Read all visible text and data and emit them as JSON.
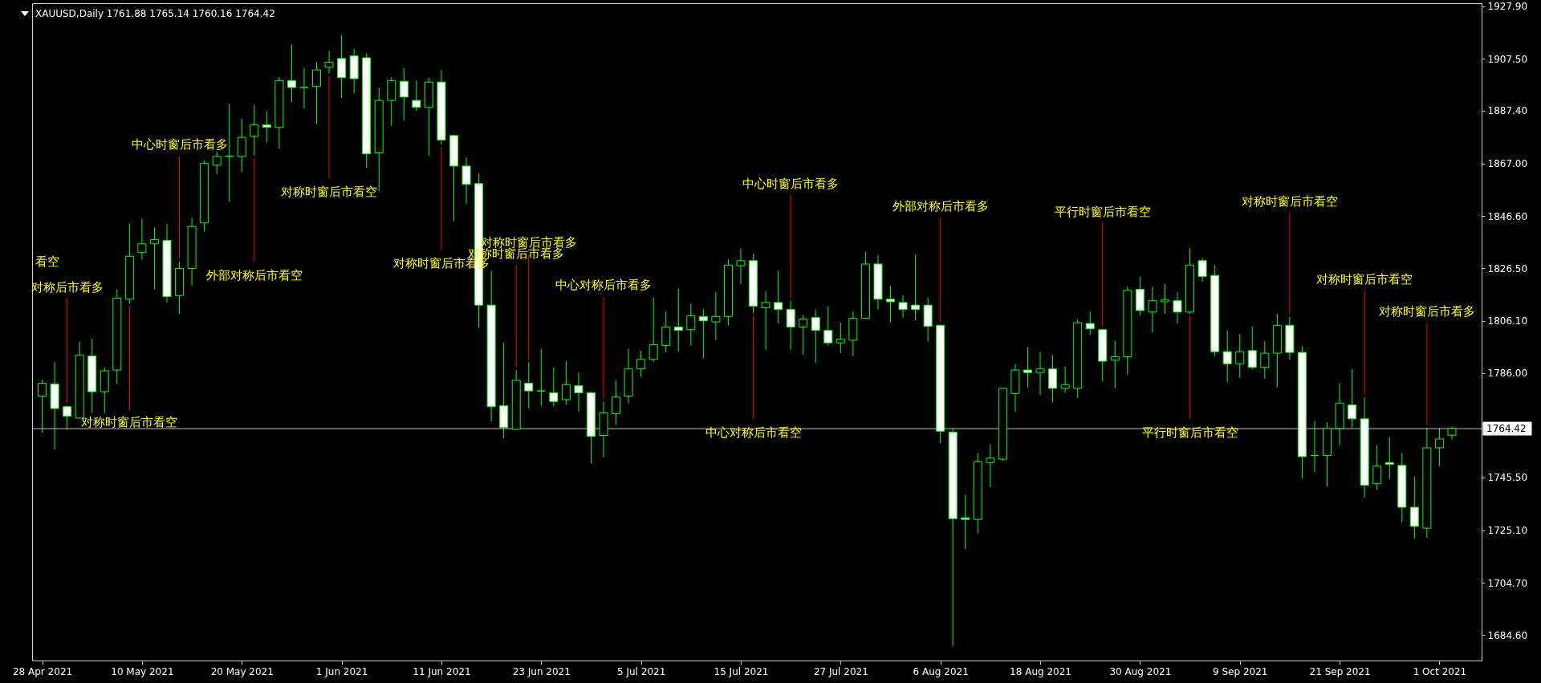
{
  "chart_data": {
    "type": "candlestick",
    "title": "XAUUSD,Daily  1761.88 1765.14 1760.16 1764.42",
    "categories": [
      "28 Apr 2021",
      null,
      null,
      null,
      null,
      null,
      null,
      null,
      "10 May 2021",
      null,
      null,
      null,
      null,
      null,
      null,
      null,
      "20 May 2021",
      null,
      null,
      null,
      null,
      null,
      null,
      null,
      "1 Jun 2021",
      null,
      null,
      null,
      null,
      null,
      null,
      null,
      "11 Jun 2021",
      null,
      null,
      null,
      null,
      null,
      null,
      null,
      "23 Jun 2021",
      null,
      null,
      null,
      null,
      null,
      null,
      null,
      "5 Jul 2021",
      null,
      null,
      null,
      null,
      null,
      null,
      null,
      "15 Jul 2021",
      null,
      null,
      null,
      null,
      null,
      null,
      null,
      "27 Jul 2021",
      null,
      null,
      null,
      null,
      null,
      null,
      null,
      "6 Aug 2021",
      null,
      null,
      null,
      null,
      null,
      null,
      null,
      "18 Aug 2021",
      null,
      null,
      null,
      null,
      null,
      null,
      null,
      "30 Aug 2021",
      null,
      null,
      null,
      null,
      null,
      null,
      null,
      "9 Sep 2021",
      null,
      null,
      null,
      null,
      null,
      null,
      null,
      "21 Sep 2021",
      null,
      null,
      null,
      null,
      null,
      null,
      null,
      "1 Oct 2021",
      null
    ],
    "ohlc": [
      [
        1777.0,
        1783.4,
        1762.8,
        1782.0
      ],
      [
        1781.7,
        1790.2,
        1756.3,
        1772.2
      ],
      [
        1772.9,
        1773.3,
        1764.1,
        1769.2
      ],
      [
        1768.5,
        1798.0,
        1768.2,
        1792.9
      ],
      [
        1792.5,
        1799.3,
        1770.5,
        1778.7
      ],
      [
        1778.7,
        1788.1,
        1770.5,
        1786.8
      ],
      [
        1787.1,
        1818.3,
        1781.7,
        1814.9
      ],
      [
        1814.5,
        1843.6,
        1812.8,
        1831.1
      ],
      [
        1832.5,
        1845.7,
        1829.8,
        1835.9
      ],
      [
        1835.9,
        1842.3,
        1818.3,
        1837.6
      ],
      [
        1837.2,
        1843.6,
        1813.2,
        1815.5
      ],
      [
        1815.9,
        1829.1,
        1808.8,
        1826.4
      ],
      [
        1826.4,
        1846.0,
        1819.6,
        1842.6
      ],
      [
        1844.0,
        1868.3,
        1840.6,
        1867.0
      ],
      [
        1866.3,
        1871.4,
        1862.9,
        1869.7
      ],
      [
        1869.7,
        1890.0,
        1852.1,
        1869.9
      ],
      [
        1869.7,
        1884.3,
        1863.6,
        1877.1
      ],
      [
        1877.5,
        1889.7,
        1870.0,
        1881.9
      ],
      [
        1881.9,
        1887.3,
        1875.1,
        1881.0
      ],
      [
        1880.9,
        1900.5,
        1872.7,
        1899.1
      ],
      [
        1899.1,
        1913.0,
        1890.7,
        1896.4
      ],
      [
        1896.4,
        1903.9,
        1888.3,
        1896.4
      ],
      [
        1896.8,
        1906.2,
        1882.2,
        1903.2
      ],
      [
        1904.2,
        1910.6,
        1901.8,
        1906.2
      ],
      [
        1907.6,
        1916.7,
        1892.4,
        1900.2
      ],
      [
        1908.6,
        1911.3,
        1894.1,
        1899.8
      ],
      [
        1907.9,
        1909.6,
        1865.3,
        1870.7
      ],
      [
        1871.1,
        1896.4,
        1856.2,
        1891.4
      ],
      [
        1891.4,
        1900.5,
        1881.5,
        1899.1
      ],
      [
        1898.8,
        1903.9,
        1883.6,
        1892.7
      ],
      [
        1891.4,
        1899.1,
        1887.3,
        1888.7
      ],
      [
        1888.7,
        1900.2,
        1870.0,
        1898.5
      ],
      [
        1898.5,
        1903.2,
        1874.4,
        1876.1
      ],
      [
        1877.8,
        1878.2,
        1844.7,
        1866.0
      ],
      [
        1866.0,
        1869.4,
        1851.4,
        1858.9
      ],
      [
        1859.2,
        1863.3,
        1803.4,
        1812.2
      ],
      [
        1812.2,
        1825.4,
        1767.2,
        1772.9
      ],
      [
        1773.3,
        1797.6,
        1760.7,
        1764.8
      ],
      [
        1764.1,
        1787.1,
        1763.8,
        1783.1
      ],
      [
        1782.0,
        1790.2,
        1772.2,
        1779.0
      ],
      [
        1779.0,
        1795.3,
        1773.3,
        1779.0
      ],
      [
        1778.3,
        1788.1,
        1772.9,
        1774.9
      ],
      [
        1775.6,
        1790.5,
        1773.6,
        1781.4
      ],
      [
        1781.0,
        1786.1,
        1770.9,
        1778.3
      ],
      [
        1778.3,
        1778.7,
        1750.9,
        1761.4
      ],
      [
        1761.8,
        1774.9,
        1753.3,
        1770.5
      ],
      [
        1770.2,
        1783.1,
        1765.8,
        1776.6
      ],
      [
        1777.0,
        1795.3,
        1774.3,
        1787.5
      ],
      [
        1787.5,
        1794.6,
        1784.4,
        1791.2
      ],
      [
        1791.2,
        1815.2,
        1790.2,
        1796.9
      ],
      [
        1796.6,
        1809.8,
        1793.9,
        1803.7
      ],
      [
        1803.7,
        1818.6,
        1794.2,
        1802.4
      ],
      [
        1802.7,
        1812.8,
        1796.6,
        1808.1
      ],
      [
        1807.8,
        1810.8,
        1791.5,
        1806.1
      ],
      [
        1805.7,
        1817.2,
        1798.6,
        1807.8
      ],
      [
        1807.8,
        1829.8,
        1804.4,
        1827.7
      ],
      [
        1827.4,
        1834.2,
        1820.3,
        1829.4
      ],
      [
        1829.4,
        1832.1,
        1809.1,
        1811.8
      ],
      [
        1811.2,
        1817.6,
        1794.9,
        1813.2
      ],
      [
        1813.2,
        1825.4,
        1805.1,
        1810.5
      ],
      [
        1810.5,
        1813.9,
        1794.9,
        1803.7
      ],
      [
        1803.7,
        1808.4,
        1792.9,
        1806.8
      ],
      [
        1807.4,
        1810.5,
        1789.8,
        1802.4
      ],
      [
        1802.4,
        1811.8,
        1796.6,
        1797.6
      ],
      [
        1797.6,
        1805.4,
        1793.6,
        1799.0
      ],
      [
        1798.6,
        1809.8,
        1792.5,
        1807.1
      ],
      [
        1807.1,
        1832.8,
        1806.8,
        1828.1
      ],
      [
        1828.1,
        1831.5,
        1810.5,
        1814.5
      ],
      [
        1814.5,
        1819.6,
        1805.7,
        1813.5
      ],
      [
        1813.2,
        1815.9,
        1807.4,
        1810.5
      ],
      [
        1812.2,
        1831.8,
        1806.4,
        1810.5
      ],
      [
        1812.2,
        1815.2,
        1798.0,
        1804.0
      ],
      [
        1804.4,
        1804.7,
        1758.7,
        1763.4
      ],
      [
        1763.1,
        1764.5,
        1680.2,
        1729.6
      ],
      [
        1729.9,
        1738.7,
        1717.8,
        1729.3
      ],
      [
        1729.3,
        1755.0,
        1723.9,
        1751.6
      ],
      [
        1751.3,
        1758.4,
        1741.8,
        1753.0
      ],
      [
        1752.6,
        1780.0,
        1751.9,
        1780.0
      ],
      [
        1778.0,
        1789.5,
        1770.9,
        1787.1
      ],
      [
        1787.1,
        1795.9,
        1780.4,
        1786.1
      ],
      [
        1786.1,
        1794.2,
        1777.3,
        1787.5
      ],
      [
        1787.5,
        1792.9,
        1774.6,
        1780.0
      ],
      [
        1780.0,
        1788.5,
        1778.3,
        1781.4
      ],
      [
        1780.0,
        1806.8,
        1776.3,
        1805.4
      ],
      [
        1805.1,
        1809.8,
        1800.7,
        1803.0
      ],
      [
        1802.7,
        1803.0,
        1782.7,
        1790.5
      ],
      [
        1790.9,
        1798.3,
        1780.0,
        1792.2
      ],
      [
        1792.2,
        1819.3,
        1785.4,
        1817.9
      ],
      [
        1818.3,
        1823.3,
        1808.1,
        1810.1
      ],
      [
        1809.5,
        1819.3,
        1801.7,
        1813.9
      ],
      [
        1813.5,
        1820.3,
        1808.8,
        1814.2
      ],
      [
        1813.9,
        1817.2,
        1805.1,
        1809.5
      ],
      [
        1809.5,
        1834.2,
        1808.8,
        1827.7
      ],
      [
        1829.4,
        1830.4,
        1821.3,
        1823.3
      ],
      [
        1823.7,
        1827.7,
        1792.5,
        1794.2
      ],
      [
        1794.2,
        1802.4,
        1782.4,
        1789.5
      ],
      [
        1789.5,
        1801.0,
        1784.1,
        1794.2
      ],
      [
        1794.6,
        1804.0,
        1787.5,
        1788.1
      ],
      [
        1788.1,
        1798.3,
        1783.7,
        1793.6
      ],
      [
        1793.6,
        1808.8,
        1780.4,
        1804.4
      ],
      [
        1804.4,
        1807.8,
        1790.9,
        1793.9
      ],
      [
        1793.9,
        1796.3,
        1745.2,
        1753.6
      ],
      [
        1754.0,
        1767.5,
        1747.5,
        1754.0
      ],
      [
        1754.0,
        1766.8,
        1742.1,
        1764.5
      ],
      [
        1764.5,
        1782.0,
        1758.0,
        1774.3
      ],
      [
        1773.6,
        1787.5,
        1764.8,
        1768.2
      ],
      [
        1768.2,
        1776.6,
        1737.7,
        1742.5
      ],
      [
        1743.1,
        1758.0,
        1740.8,
        1749.9
      ],
      [
        1751.3,
        1761.1,
        1744.8,
        1750.6
      ],
      [
        1750.2,
        1755.0,
        1728.3,
        1734.0
      ],
      [
        1734.0,
        1745.8,
        1721.8,
        1726.6
      ],
      [
        1725.9,
        1764.8,
        1722.2,
        1757.0
      ],
      [
        1757.0,
        1764.5,
        1749.9,
        1760.4
      ],
      [
        1761.88,
        1765.14,
        1760.16,
        1764.42
      ]
    ],
    "ylim": [
      1674.7,
      1929.0
    ],
    "yticks": [
      {
        "value": 1927.9,
        "label": "1927.90"
      },
      {
        "value": 1907.5,
        "label": "1907.50"
      },
      {
        "value": 1887.4,
        "label": "1887.40"
      },
      {
        "value": 1867.0,
        "label": "1867.00"
      },
      {
        "value": 1846.6,
        "label": "1846.60"
      },
      {
        "value": 1826.5,
        "label": "1826.50"
      },
      {
        "value": 1806.1,
        "label": "1806.10"
      },
      {
        "value": 1786.0,
        "label": "1786.00"
      },
      {
        "value": 1745.5,
        "label": "1745.50"
      },
      {
        "value": 1725.1,
        "label": "1725.10"
      },
      {
        "value": 1704.7,
        "label": "1704.70"
      },
      {
        "value": 1684.6,
        "label": "1684.60"
      }
    ],
    "ref_lines": [
      {
        "axis": "y",
        "value": 1764.42,
        "label": "1764.42",
        "color": "#c0c0c0"
      }
    ],
    "annotations": [
      "看空",
      {
        "text": "对称后市看多",
        "y": 1773.3
      },
      {
        "text": "对称时窗后市看空",
        "y": 1812.8
      },
      {
        "text": "中心时窗后市看多",
        "y": 1829.1
      },
      {
        "text": "外部对称后市看空",
        "y": 1870.0
      },
      {
        "text": "对称时窗后市看空",
        "y": 1901.8
      },
      {
        "text": "对称时窗后市看多",
        "y": 1874.4
      },
      {
        "text": "对称时窗后市看多",
        "y": 1790.2
      },
      {
        "text": "对称时窗后市看多",
        "y": 1787.1
      },
      {
        "text": "中心对称后市看多",
        "y": 1774.9
      },
      {
        "text": "中心对称后市看空",
        "y": 1809.1
      },
      {
        "text": "中心时窗后市看多",
        "y": 1813.9
      },
      {
        "text": "外部对称后市看多",
        "y": 1804.7
      },
      {
        "text": "平行时窗后市看空",
        "y": 1803.0
      },
      {
        "text": "平行时窗后市看空",
        "y": 1808.8
      },
      {
        "text": "对称时窗后市看空",
        "y": 1807.8
      },
      {
        "text": "对称时窗后市看空",
        "y": 1776.6
      },
      {
        "text": "对称时窗后市看多",
        "y": 1764.8
      }
    ]
  }
}
